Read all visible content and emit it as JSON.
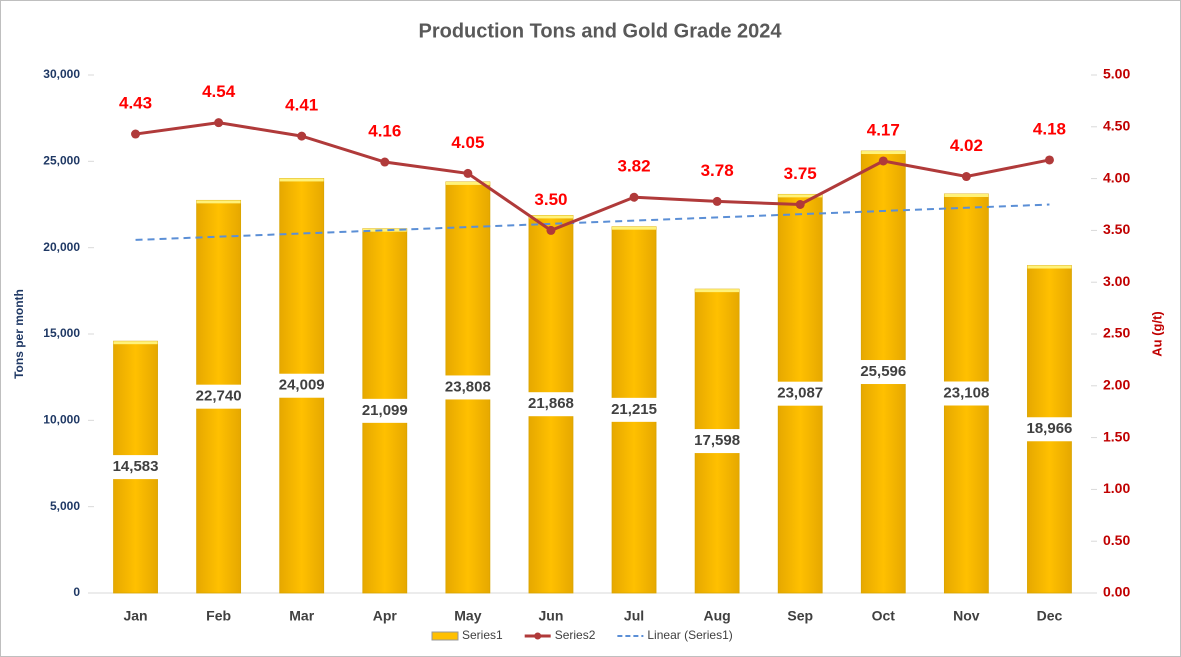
{
  "chart_data": {
    "type": "bar",
    "title": "Production Tons and Gold Grade 2024",
    "categories": [
      "Jan",
      "Feb",
      "Mar",
      "Apr",
      "May",
      "Jun",
      "Jul",
      "Aug",
      "Sep",
      "Oct",
      "Nov",
      "Dec"
    ],
    "series": [
      {
        "name": "Series1",
        "type": "bar",
        "color": "#ffc000",
        "values": [
          14583,
          22740,
          24009,
          21099,
          23808,
          21868,
          21215,
          17598,
          23087,
          25596,
          23108,
          18966
        ],
        "value_labels": [
          "14,583",
          "22,740",
          "24,009",
          "21,099",
          "23,808",
          "21,868",
          "21,215",
          "17,598",
          "23,087",
          "25,596",
          "23,108",
          "18,966"
        ]
      },
      {
        "name": "Series2",
        "type": "line",
        "axis": "y2",
        "color": "#b03a3a",
        "values": [
          4.43,
          4.54,
          4.41,
          4.16,
          4.05,
          3.5,
          3.82,
          3.78,
          3.75,
          4.17,
          4.02,
          4.18
        ],
        "value_labels": [
          "4.43",
          "4.54",
          "4.41",
          "4.16",
          "4.05",
          "3.50",
          "3.82",
          "3.78",
          "3.75",
          "4.17",
          "4.02",
          "4.18"
        ]
      }
    ],
    "trendline": {
      "name": "Linear (Series1)",
      "color": "#5b8fd6"
    },
    "ylabel": "Tons per month",
    "y2label": "Au (g/t)",
    "ylim": [
      0,
      30000
    ],
    "yticks": [
      0,
      {
        "value": 5000,
        "label": "5,000"
      },
      {
        "value": 10000,
        "label": "10,000"
      },
      {
        "value": 15000,
        "label": "15,000"
      },
      {
        "value": 20000,
        "label": "20,000"
      },
      {
        "value": 25000,
        "label": "25,000"
      },
      {
        "value": 30000,
        "label": "30,000"
      }
    ],
    "y2lim": [
      0,
      5
    ],
    "y2ticks": [
      {
        "value": 0,
        "label": "0.00"
      },
      {
        "value": 0.5,
        "label": "0.50"
      },
      {
        "value": 1,
        "label": "1.00"
      },
      {
        "value": 1.5,
        "label": "1.50"
      },
      {
        "value": 2,
        "label": "2.00"
      },
      {
        "value": 2.5,
        "label": "2.50"
      },
      {
        "value": 3,
        "label": "3.00"
      },
      {
        "value": 3.5,
        "label": "3.50"
      },
      {
        "value": 4,
        "label": "4.00"
      },
      {
        "value": 4.5,
        "label": "4.50"
      },
      {
        "value": 5,
        "label": "5.00"
      }
    ],
    "legend": "bottom"
  }
}
